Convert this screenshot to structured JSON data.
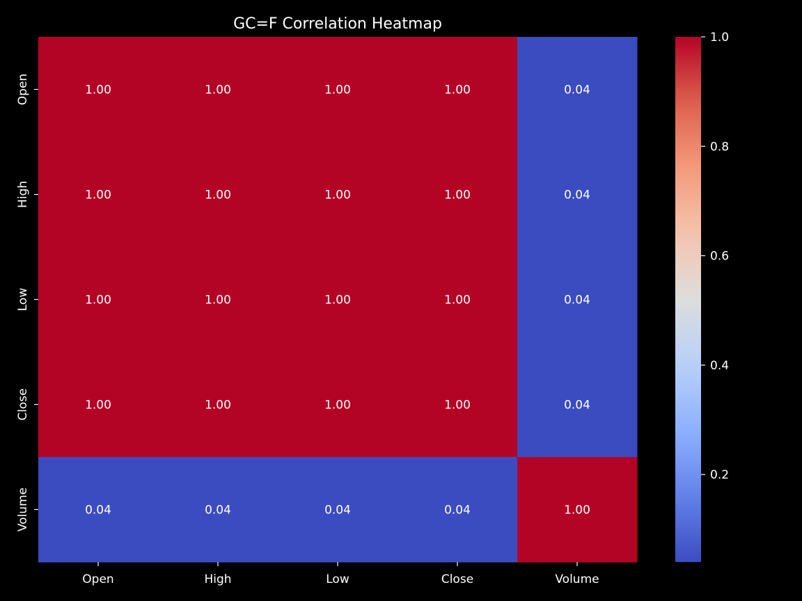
{
  "chart_data": {
    "type": "heatmap",
    "title": "GC=F Correlation Heatmap",
    "x_categories": [
      "Open",
      "High",
      "Low",
      "Close",
      "Volume"
    ],
    "y_categories": [
      "Open",
      "High",
      "Low",
      "Close",
      "Volume"
    ],
    "values": [
      [
        1.0,
        1.0,
        1.0,
        1.0,
        0.04
      ],
      [
        1.0,
        1.0,
        1.0,
        1.0,
        0.04
      ],
      [
        1.0,
        1.0,
        1.0,
        1.0,
        0.04
      ],
      [
        1.0,
        1.0,
        1.0,
        1.0,
        0.04
      ],
      [
        0.04,
        0.04,
        0.04,
        0.04,
        1.0
      ]
    ],
    "annotation_format": "0.00",
    "colormap": "coolwarm",
    "color_range": [
      0.04,
      1.0
    ],
    "colorbar_ticks": [
      0.2,
      0.4,
      0.6,
      0.8,
      1.0
    ],
    "colorbar_tick_labels": [
      "0.2",
      "0.4",
      "0.6",
      "0.8",
      "1.0"
    ],
    "colorbar_placement": "right",
    "grid": false,
    "background_color": "#000000",
    "text_color": "#ffffff"
  }
}
